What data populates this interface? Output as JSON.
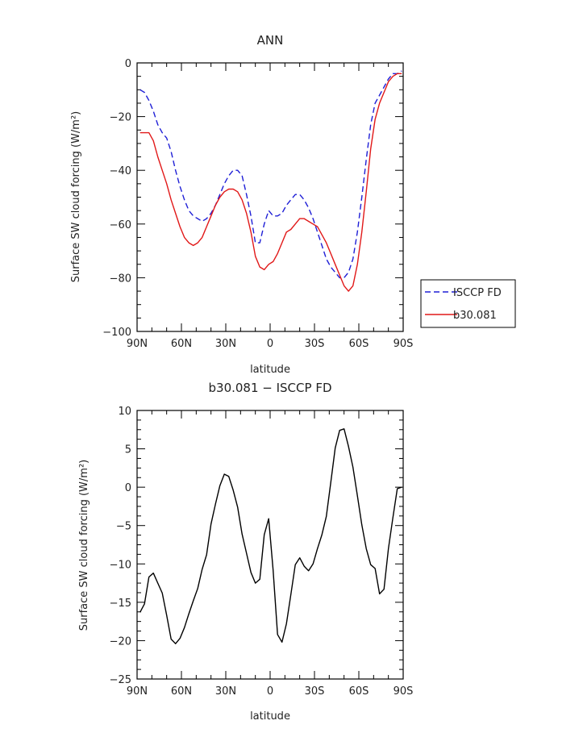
{
  "chart_data": [
    {
      "type": "line",
      "title": "ANN",
      "xlabel": "latitude",
      "ylabel": "Surface SW cloud forcing (W/m²)",
      "xlim": [
        90,
        -90
      ],
      "ylim": [
        -100,
        0
      ],
      "x_ticks": [
        90,
        60,
        30,
        0,
        -30,
        -60,
        -90
      ],
      "x_tick_labels": [
        "90N",
        "60N",
        "30N",
        "0",
        "30S",
        "60S",
        "90S"
      ],
      "y_ticks": [
        0,
        -20,
        -40,
        -60,
        -80,
        -100
      ],
      "y_tick_labels": [
        "0",
        "−20",
        "−40",
        "−60",
        "−80",
        "−100"
      ],
      "legend_placement": "right",
      "series": [
        {
          "name": "ISCCP FD",
          "style": "dashed",
          "color": "#1f1fd6",
          "x": [
            88,
            85,
            82,
            79,
            76,
            73,
            70,
            67,
            64,
            61,
            58,
            55,
            52,
            49,
            46,
            43,
            40,
            37,
            34,
            31,
            28,
            25,
            22,
            19,
            16,
            13,
            10,
            7,
            4,
            1,
            -2,
            -5,
            -8,
            -11,
            -14,
            -17,
            -20,
            -23,
            -26,
            -29,
            -32,
            -35,
            -38,
            -41,
            -44,
            -47,
            -50,
            -53,
            -56,
            -59,
            -62,
            -65,
            -68,
            -71,
            -74,
            -77,
            -80,
            -83,
            -86,
            -89
          ],
          "values": [
            -10,
            -11,
            -14,
            -18,
            -23,
            -26,
            -28,
            -33,
            -40,
            -46,
            -51,
            -55,
            -57,
            -58,
            -59,
            -58,
            -56,
            -53,
            -49,
            -45,
            -42,
            -40,
            -40,
            -42,
            -49,
            -57,
            -67,
            -67,
            -60,
            -55,
            -57,
            -57,
            -56,
            -53,
            -51,
            -49,
            -49,
            -51,
            -54,
            -58,
            -63,
            -68,
            -73,
            -76,
            -78,
            -80,
            -80,
            -78,
            -73,
            -63,
            -50,
            -36,
            -23,
            -15,
            -12,
            -9,
            -6,
            -4,
            -4,
            -3
          ]
        },
        {
          "name": "b30.081",
          "style": "solid",
          "color": "#e11818",
          "x": [
            88,
            85,
            82,
            79,
            76,
            73,
            70,
            67,
            64,
            61,
            58,
            55,
            52,
            49,
            46,
            43,
            40,
            37,
            34,
            31,
            28,
            25,
            22,
            19,
            16,
            13,
            10,
            7,
            4,
            1,
            -2,
            -5,
            -8,
            -11,
            -14,
            -17,
            -20,
            -23,
            -26,
            -29,
            -32,
            -35,
            -38,
            -41,
            -44,
            -47,
            -50,
            -53,
            -56,
            -59,
            -62,
            -65,
            -68,
            -71,
            -74,
            -77,
            -80,
            -83,
            -86,
            -89
          ],
          "values": [
            -26,
            -26,
            -26,
            -29,
            -35,
            -40,
            -45,
            -51,
            -56,
            -61,
            -65,
            -67,
            -68,
            -67,
            -65,
            -61,
            -57,
            -53,
            -50,
            -48,
            -47,
            -47,
            -48,
            -51,
            -56,
            -63,
            -72,
            -76,
            -77,
            -75,
            -74,
            -71,
            -67,
            -63,
            -62,
            -60,
            -58,
            -58,
            -59,
            -60,
            -61,
            -64,
            -67,
            -71,
            -75,
            -79,
            -83,
            -85,
            -83,
            -75,
            -63,
            -48,
            -32,
            -21,
            -15,
            -11,
            -7,
            -5,
            -4,
            -4
          ]
        }
      ]
    },
    {
      "type": "line",
      "title": "b30.081 − ISCCP FD",
      "xlabel": "latitude",
      "ylabel": "Surface SW cloud forcing (W/m²)",
      "xlim": [
        90,
        -90
      ],
      "ylim": [
        -25,
        10
      ],
      "x_ticks": [
        90,
        60,
        30,
        0,
        -30,
        -60,
        -90
      ],
      "x_tick_labels": [
        "90N",
        "60N",
        "30N",
        "0",
        "30S",
        "60S",
        "90S"
      ],
      "y_ticks": [
        10,
        5,
        0,
        -5,
        -10,
        -15,
        -20,
        -25
      ],
      "y_tick_labels": [
        "10",
        "5",
        "0",
        "−5",
        "−10",
        "−15",
        "−20",
        "−25"
      ],
      "series": [
        {
          "style": "solid",
          "color": "#000000",
          "x": [
            88,
            85,
            82,
            79,
            76,
            73,
            70,
            67,
            64,
            61,
            58,
            55,
            52,
            49,
            46,
            43,
            40,
            37,
            34,
            31,
            28,
            25,
            22,
            19,
            16,
            13,
            10,
            7,
            4,
            1,
            -2,
            -5,
            -8,
            -11,
            -14,
            -17,
            -20,
            -23,
            -26,
            -29,
            -32,
            -35,
            -38,
            -41,
            -44,
            -47,
            -50,
            -53,
            -56,
            -59,
            -62,
            -65,
            -68,
            -71,
            -74,
            -77,
            -80,
            -83,
            -86,
            -89
          ],
          "values": [
            -16.3,
            -15.2,
            -11.7,
            -11.2,
            -12.5,
            -13.8,
            -16.7,
            -19.8,
            -20.4,
            -19.7,
            -18.3,
            -16.5,
            -14.8,
            -13.2,
            -10.7,
            -8.8,
            -4.8,
            -2.2,
            0.2,
            1.7,
            1.4,
            -0.4,
            -2.6,
            -6.1,
            -8.6,
            -11.1,
            -12.5,
            -12.0,
            -6.2,
            -4.1,
            -10.8,
            -19.2,
            -20.2,
            -17.8,
            -14.0,
            -10.1,
            -9.2,
            -10.3,
            -10.9,
            -10.0,
            -8.0,
            -6.2,
            -3.8,
            0.6,
            5.1,
            7.4,
            7.6,
            5.3,
            2.6,
            -1.1,
            -4.9,
            -8.0,
            -10.1,
            -10.6,
            -13.9,
            -13.3,
            -8.0,
            -4.0,
            -0.2,
            0.0
          ]
        }
      ]
    }
  ]
}
